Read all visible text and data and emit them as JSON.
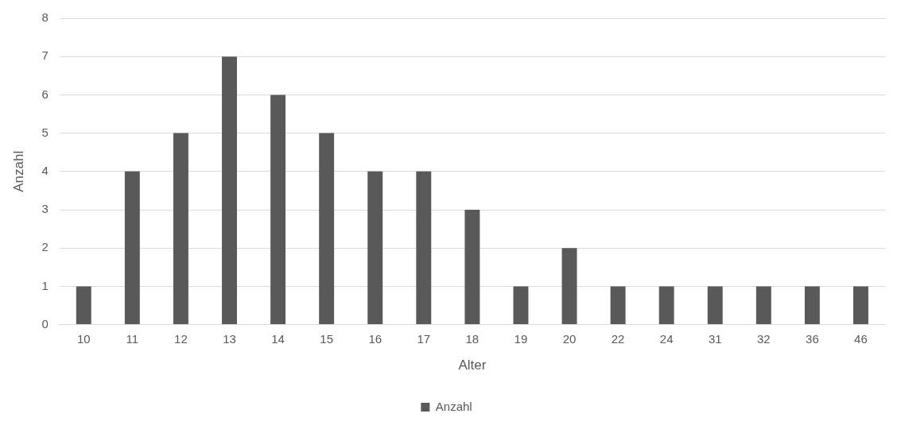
{
  "chart_data": {
    "type": "bar",
    "xlabel": "Alter",
    "ylabel": "Anzahl",
    "categories": [
      "10",
      "11",
      "12",
      "13",
      "14",
      "15",
      "16",
      "17",
      "18",
      "19",
      "20",
      "22",
      "24",
      "31",
      "32",
      "36",
      "46"
    ],
    "series": [
      {
        "name": "Anzahl",
        "color": "#595959",
        "values": [
          1,
          4,
          5,
          7,
          6,
          5,
          4,
          4,
          3,
          1,
          2,
          1,
          1,
          1,
          1,
          1,
          1
        ]
      }
    ],
    "ylim": [
      0,
      8
    ],
    "yticks": [
      0,
      1,
      2,
      3,
      4,
      5,
      6,
      7,
      8
    ],
    "grid": "y",
    "legend": "bottom"
  }
}
